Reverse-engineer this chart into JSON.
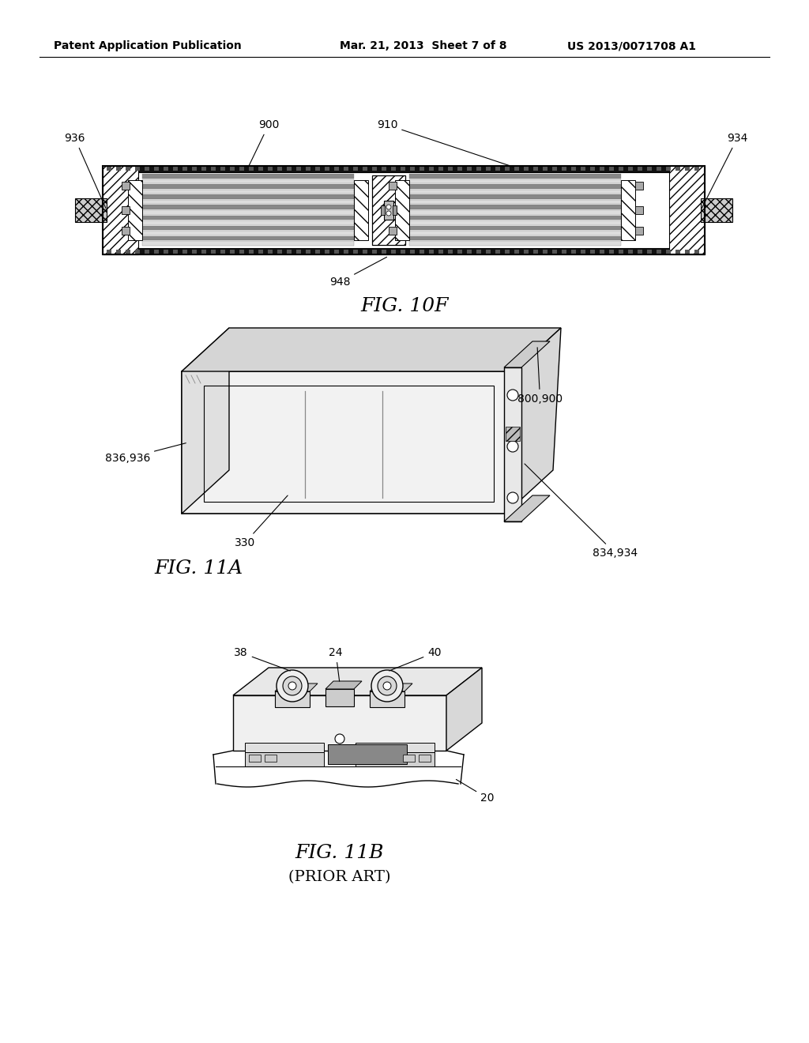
{
  "bg_color": "#ffffff",
  "header_left": "Patent Application Publication",
  "header_mid": "Mar. 21, 2013  Sheet 7 of 8",
  "header_right": "US 2013/0071708 A1",
  "header_fontsize": 10,
  "fig10f_label": "FIG. 10F",
  "fig11a_label": "FIG. 11A",
  "fig11b_label": "FIG. 11B",
  "fig11b_sub": "(PRIOR ART)",
  "label_fontsize": 16,
  "annotation_fontsize": 10,
  "line_color": "#000000"
}
